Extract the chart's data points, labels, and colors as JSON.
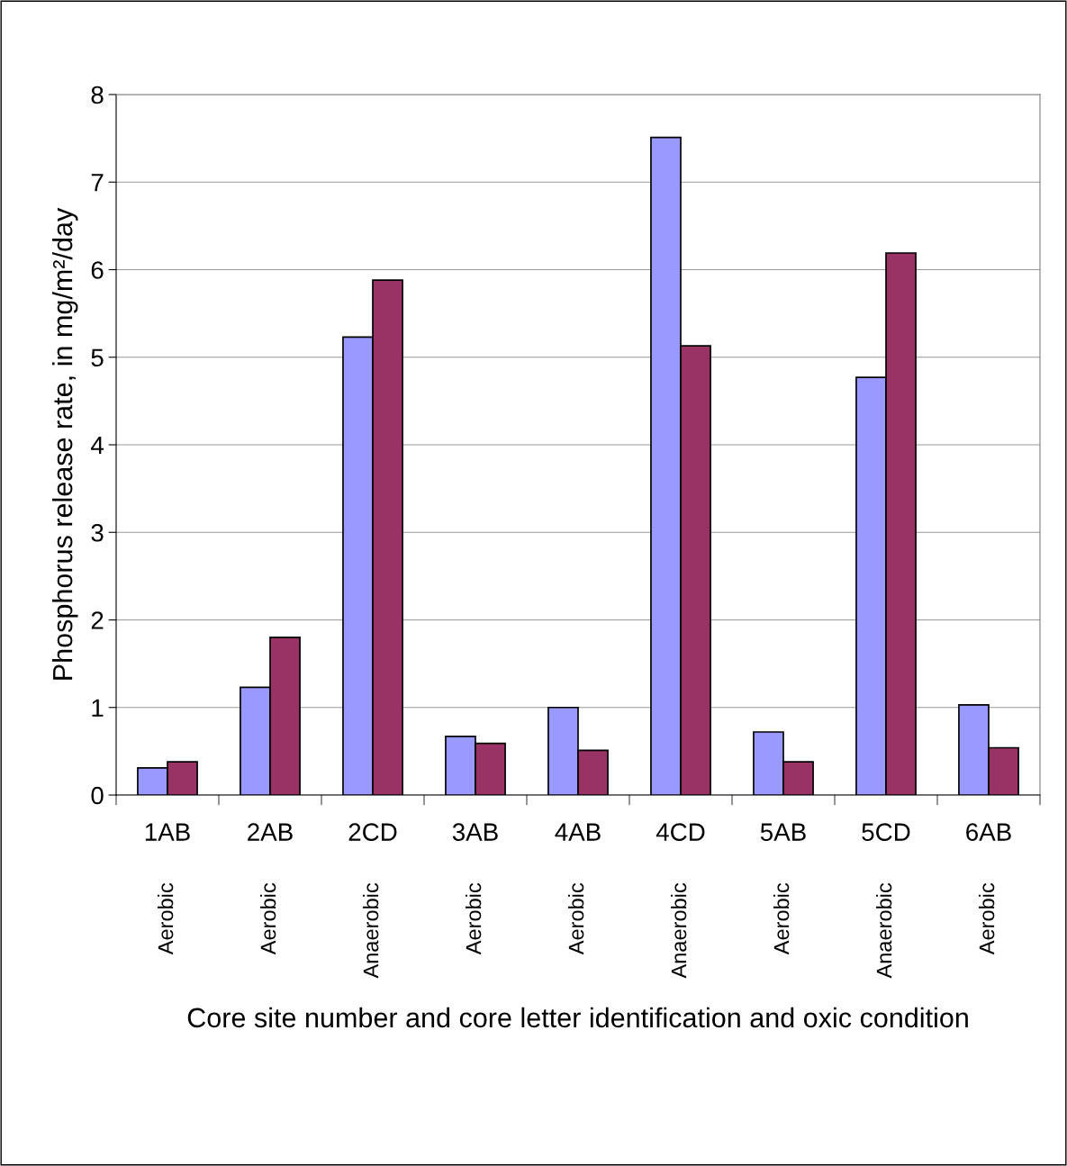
{
  "chart_data": {
    "type": "bar",
    "ylabel": "Phosphorus release rate, in mg/m²/day",
    "categories": [
      "1AB",
      "2AB",
      "2CD",
      "3AB",
      "4AB",
      "4CD",
      "5AB",
      "5CD",
      "6AB"
    ],
    "annotations": [
      "Aerobic",
      "Aerobic",
      "Anaerobic",
      "Aerobic",
      "Aerobic",
      "Anaerobic",
      "Aerobic",
      "Anaerobic",
      "Aerobic",
      "Core site number and core letter identification and oxic condition"
    ],
    "series": [
      {
        "color": "#9999ff",
        "values": [
          0.31,
          1.23,
          5.23,
          0.67,
          1.0,
          7.51,
          0.72,
          4.77,
          1.03
        ]
      },
      {
        "color": "#993366",
        "values": [
          0.38,
          1.8,
          5.88,
          0.59,
          0.51,
          5.13,
          0.38,
          6.19,
          0.54
        ]
      }
    ],
    "ylim": [
      0,
      8
    ],
    "yticks": [
      0,
      1,
      2,
      3,
      4,
      5,
      6,
      7,
      8
    ],
    "grid": "y",
    "legend": false
  }
}
